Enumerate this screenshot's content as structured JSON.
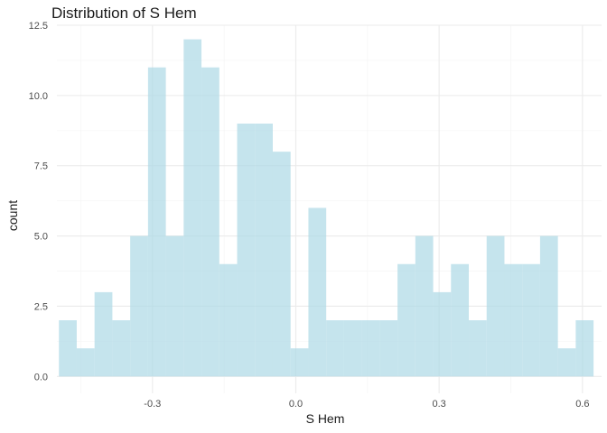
{
  "chart_data": {
    "type": "bar",
    "title": "Distribution of S Hem",
    "xlabel": "S Hem",
    "ylabel": "count",
    "xlim": [
      -0.5,
      0.64
    ],
    "ylim": [
      -0.6,
      12.5
    ],
    "xticks": [
      -0.3,
      0.0,
      0.3,
      0.6
    ],
    "xtick_labels": [
      "-0.3",
      "0.0",
      "0.3",
      "0.6"
    ],
    "yticks": [
      0,
      2.5,
      5,
      7.5,
      10,
      12.5
    ],
    "ytick_labels": [
      "0.0",
      "2.5",
      "5.0",
      "7.5",
      "10.0",
      "12.5"
    ],
    "grid": true,
    "bin_width": 0.0373,
    "bin_start": -0.4958,
    "values": [
      2,
      1,
      3,
      2,
      5,
      11,
      5,
      12,
      11,
      4,
      9,
      9,
      8,
      1,
      6,
      2,
      2,
      2,
      2,
      4,
      5,
      3,
      4,
      2,
      5,
      4,
      4,
      5,
      1,
      2
    ],
    "bar_color": "#add8e6"
  }
}
